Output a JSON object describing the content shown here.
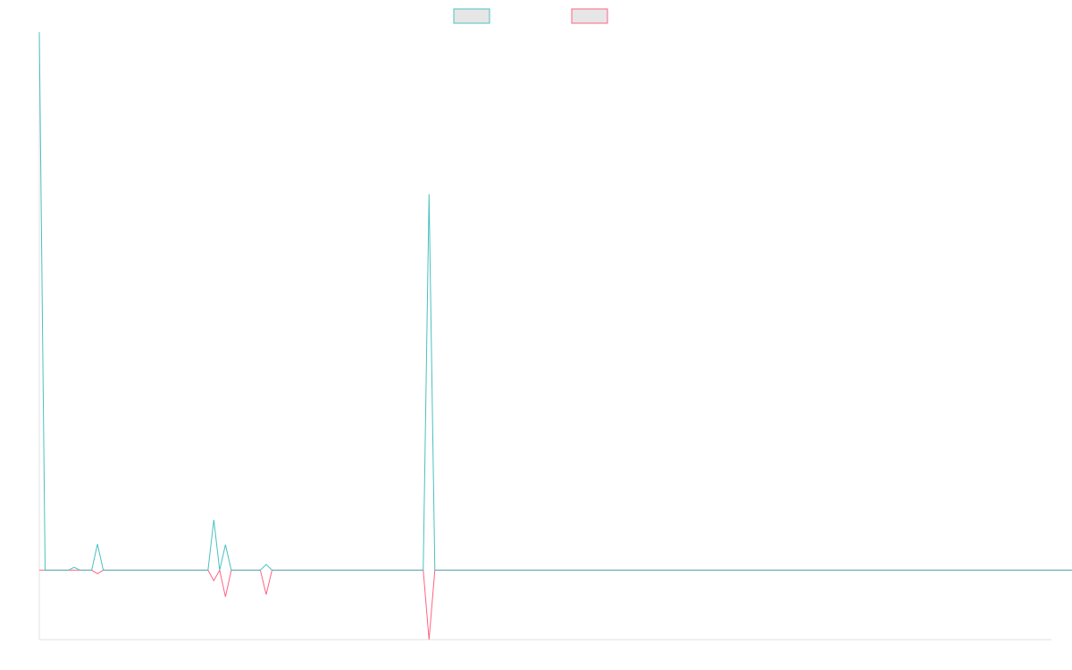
{
  "chart_data": {
    "type": "line",
    "title": "",
    "xlabel": "",
    "ylabel": "",
    "legend_position": "top-center",
    "grid": false,
    "xlim": [
      0,
      174
    ],
    "ylim": [
      -12,
      93
    ],
    "series": [
      {
        "name": "",
        "color": "#4bc0c0",
        "fill": "#e6e6e6",
        "values": [
          93,
          0,
          0,
          0,
          0,
          0,
          0.5,
          0,
          0,
          0,
          4.5,
          0,
          0,
          0,
          0,
          0,
          0,
          0,
          0,
          0,
          0,
          0,
          0,
          0,
          0,
          0,
          0,
          0,
          0,
          0,
          8.7,
          0,
          4.4,
          0,
          0,
          0,
          0,
          0,
          0,
          1,
          0,
          0,
          0,
          0,
          0,
          0,
          0,
          0,
          0,
          0,
          0,
          0,
          0,
          0,
          0,
          0,
          0,
          0,
          0,
          0,
          0,
          0,
          0,
          0,
          0,
          0,
          0,
          65,
          0,
          0,
          0,
          0,
          0,
          0,
          0,
          0,
          0,
          0,
          0,
          0,
          0,
          0,
          0,
          0,
          0,
          0,
          0,
          0,
          0,
          0,
          0,
          0,
          0,
          0,
          0,
          0,
          0,
          0,
          0,
          0,
          0,
          0,
          0,
          0,
          0,
          0,
          0,
          0,
          0,
          0,
          0,
          0,
          0,
          0,
          0,
          0,
          0,
          0,
          0,
          0,
          0,
          0,
          0,
          0,
          0,
          0,
          0,
          0,
          0,
          0,
          0,
          0,
          0,
          0,
          0,
          0,
          0,
          0,
          0,
          0,
          0,
          0,
          0,
          0,
          0,
          0,
          0,
          0,
          0,
          0,
          0,
          0,
          0,
          0,
          0,
          0,
          0,
          0,
          0,
          0,
          0,
          0,
          0,
          0,
          0,
          0,
          0,
          0,
          0,
          0,
          0,
          0,
          0,
          0,
          0,
          0,
          0,
          0,
          0,
          0,
          0
        ]
      },
      {
        "name": "",
        "color": "#ff6384",
        "fill": "#e6e6e6",
        "values": [
          0,
          0,
          0,
          0,
          0,
          0,
          0,
          0,
          0,
          0,
          -0.6,
          0,
          0,
          0,
          0,
          0,
          0,
          0,
          0,
          0,
          0,
          0,
          0,
          0,
          0,
          0,
          0,
          0,
          0,
          0,
          -1.8,
          0,
          -4.6,
          0,
          0,
          0,
          0,
          0,
          0,
          -4.2,
          0,
          0,
          0,
          0,
          0,
          0,
          0,
          0,
          0,
          0,
          0,
          0,
          0,
          0,
          0,
          0,
          0,
          0,
          0,
          0,
          0,
          0,
          0,
          0,
          0,
          0,
          0,
          -12,
          0,
          0,
          0,
          0,
          0,
          0,
          0,
          0,
          0,
          0,
          0,
          0,
          0,
          0,
          0,
          0,
          0,
          0,
          0,
          0,
          0,
          0,
          0,
          0,
          0,
          0,
          0,
          0,
          0,
          0,
          0,
          0,
          0,
          0,
          0,
          0,
          0,
          0,
          0,
          0,
          0,
          0,
          0,
          0,
          0,
          0,
          0,
          0,
          0,
          0,
          0,
          0,
          0,
          0,
          0,
          0,
          0,
          0,
          0,
          0,
          0,
          0,
          0,
          0,
          0,
          0,
          0,
          0,
          0,
          0,
          0,
          0,
          0,
          0,
          0,
          0,
          0,
          0,
          0,
          0,
          0,
          0,
          0,
          0,
          0,
          0,
          0,
          0,
          0,
          0,
          0,
          0,
          0,
          0,
          0,
          0,
          0,
          0,
          0,
          0,
          0,
          0,
          0,
          0,
          0,
          0,
          0,
          0,
          0,
          0,
          0,
          0,
          0
        ]
      }
    ]
  }
}
